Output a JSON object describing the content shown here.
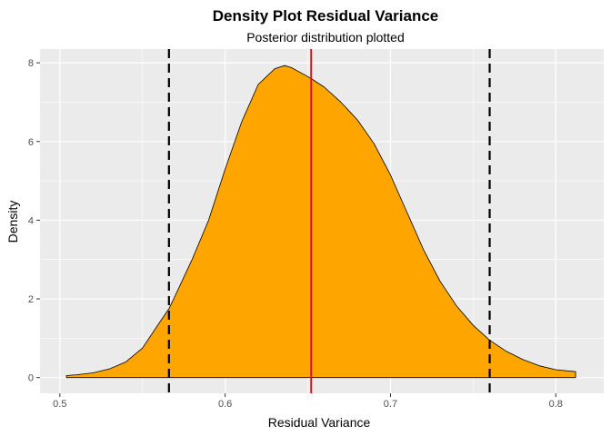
{
  "chart_data": {
    "type": "area",
    "title": "Density Plot Residual Variance",
    "subtitle": "Posterior distribution plotted",
    "xlabel": "Residual Variance",
    "ylabel": "Density",
    "xlim": [
      0.488,
      0.829
    ],
    "ylim": [
      -0.4,
      8.35
    ],
    "x_ticks": [
      0.5,
      0.6,
      0.7,
      0.8
    ],
    "x_tick_labels": [
      "0.5",
      "0.6",
      "0.7",
      "0.8"
    ],
    "y_ticks": [
      0,
      2,
      4,
      6,
      8
    ],
    "y_tick_labels": [
      "0",
      "2",
      "4",
      "6",
      "8"
    ],
    "grid": true,
    "fill_color": "#FFA500",
    "outline_color": "#000000",
    "panel_color": "#EBEBEB",
    "grid_color": "#FFFFFF",
    "series": [
      {
        "type": "density",
        "x": [
          0.504,
          0.51,
          0.52,
          0.53,
          0.54,
          0.55,
          0.56,
          0.566,
          0.57,
          0.58,
          0.59,
          0.6,
          0.61,
          0.62,
          0.63,
          0.636,
          0.64,
          0.65,
          0.652,
          0.66,
          0.67,
          0.68,
          0.69,
          0.7,
          0.71,
          0.72,
          0.73,
          0.74,
          0.75,
          0.76,
          0.77,
          0.78,
          0.79,
          0.8,
          0.812
        ],
        "values": [
          0.05,
          0.07,
          0.12,
          0.22,
          0.4,
          0.75,
          1.38,
          1.75,
          2.1,
          3.0,
          4.0,
          5.3,
          6.5,
          7.45,
          7.85,
          7.93,
          7.88,
          7.65,
          7.6,
          7.38,
          7.0,
          6.55,
          5.95,
          5.15,
          4.2,
          3.25,
          2.45,
          1.82,
          1.33,
          0.95,
          0.67,
          0.46,
          0.3,
          0.2,
          0.15
        ]
      }
    ],
    "vlines": [
      {
        "x": 0.566,
        "style": "dashed",
        "color": "#000000"
      },
      {
        "x": 0.652,
        "style": "solid",
        "color": "#FF0000"
      },
      {
        "x": 0.76,
        "style": "dashed",
        "color": "#000000"
      }
    ]
  }
}
